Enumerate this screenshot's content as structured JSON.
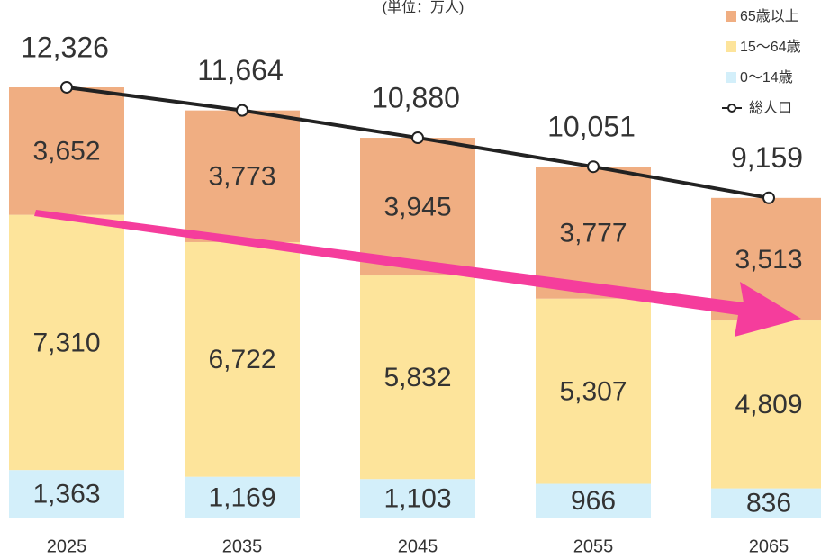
{
  "chart_data": {
    "type": "bar",
    "stacked": true,
    "subtitle": "(単位：万人)",
    "categories": [
      "2025",
      "2035",
      "2045",
      "2055",
      "2065"
    ],
    "series": [
      {
        "name": "0〜14歳",
        "color": "#d3effa",
        "values": [
          1363,
          1169,
          1103,
          966,
          836
        ],
        "value_labels": [
          "1,363",
          "1,169",
          "1,103",
          "966",
          "836"
        ]
      },
      {
        "name": "15〜64歳",
        "color": "#fde49b",
        "values": [
          7310,
          6722,
          5832,
          5307,
          4809
        ],
        "value_labels": [
          "7,310",
          "6,722",
          "5,832",
          "5,307",
          "4,809"
        ]
      },
      {
        "name": "65歳以上",
        "color": "#f0ae82",
        "values": [
          3652,
          3773,
          3945,
          3777,
          3513
        ],
        "value_labels": [
          "3,652",
          "3,773",
          "3,945",
          "3,777",
          "3,513"
        ]
      }
    ],
    "line": {
      "name": "総人口",
      "color": "#222222",
      "values": [
        12326,
        11664,
        10880,
        10051,
        9159
      ],
      "value_labels": [
        "12,326",
        "11,664",
        "10,880",
        "10,051",
        "9,159"
      ]
    }
  }
}
